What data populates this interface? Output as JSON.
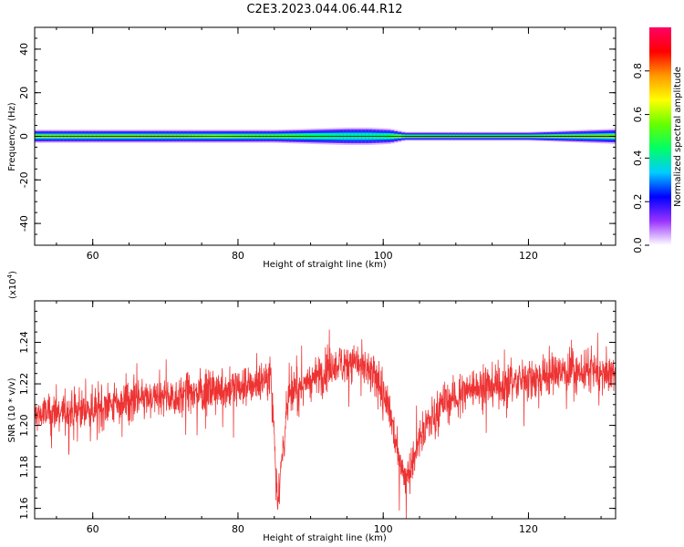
{
  "title": "C2E3.2023.044.06.44.R12",
  "colors": {
    "snr_line": "#ee3333",
    "axis": "#000000",
    "colormap": [
      "#ffffff",
      "#9933ff",
      "#0000ff",
      "#00ccff",
      "#00ff66",
      "#66ff00",
      "#ffff00",
      "#ff9900",
      "#ff0000",
      "#ff0066"
    ]
  },
  "chart_data": [
    {
      "type": "heatmap",
      "xlabel": "Height of straight line (km)",
      "ylabel": "Frequency (Hz)",
      "xlim": [
        52,
        132
      ],
      "ylim": [
        -50,
        50
      ],
      "x_ticks": [
        60,
        80,
        100,
        120
      ],
      "x_tick_labels": [
        "60",
        "80",
        "100",
        "120"
      ],
      "y_ticks": [
        40,
        20,
        0,
        -20,
        -40
      ],
      "y_tick_labels": [
        "40",
        "20",
        "0",
        "-20",
        "-40"
      ],
      "grid": false,
      "colorbar": {
        "label": "Normalized spectral amplitude",
        "range": [
          0,
          1
        ],
        "ticks": [
          0.0,
          0.2,
          0.4,
          0.6,
          0.8
        ],
        "tick_labels": [
          "0.0",
          "0.2",
          "0.4",
          "0.6",
          "0.8"
        ]
      },
      "band_center_hz": 0,
      "band_profile": {
        "x": [
          52,
          60,
          70,
          80,
          85,
          90,
          95,
          98,
          101,
          103,
          110,
          120,
          128,
          132
        ],
        "half_width_hz": [
          3,
          3,
          3,
          3,
          3,
          3.5,
          4,
          4,
          3.5,
          2,
          2,
          2,
          3,
          3.5
        ],
        "core_value": [
          0.7,
          0.75,
          0.8,
          0.6,
          0.55,
          0.45,
          0.4,
          0.4,
          0.45,
          0.85,
          0.9,
          0.9,
          0.9,
          0.88
        ]
      }
    },
    {
      "type": "line",
      "xlabel": "Height of straight line (km)",
      "ylabel": "SNR (10 * v/v)",
      "scale_label_mantissa": "(x10",
      "scale_label_exponent": "4",
      "scale_label_close": ")",
      "xlim": [
        52,
        132
      ],
      "ylim": [
        1.155,
        1.26
      ],
      "x_ticks": [
        60,
        80,
        100,
        120
      ],
      "x_tick_labels": [
        "60",
        "80",
        "100",
        "120"
      ],
      "y_ticks": [
        1.16,
        1.18,
        1.2,
        1.22,
        1.24
      ],
      "y_tick_labels": [
        "1.16",
        "1.18",
        "1.20",
        "1.22",
        "1.24"
      ],
      "grid": false,
      "series": [
        {
          "mean_profile": {
            "x": [
              52,
              60,
              65,
              70,
              75,
              80,
              83,
              84.5,
              85.5,
              87,
              90,
              93,
              96,
              99,
              101,
              102,
              103,
              104,
              105,
              108,
              112,
              120,
              125,
              132
            ],
            "y": [
              1.205,
              1.208,
              1.212,
              1.213,
              1.216,
              1.218,
              1.221,
              1.225,
              1.165,
              1.215,
              1.222,
              1.228,
              1.232,
              1.222,
              1.205,
              1.188,
              1.175,
              1.182,
              1.195,
              1.21,
              1.218,
              1.222,
              1.226,
              1.225
            ]
          },
          "noise_amplitude": 0.012
        }
      ]
    }
  ]
}
